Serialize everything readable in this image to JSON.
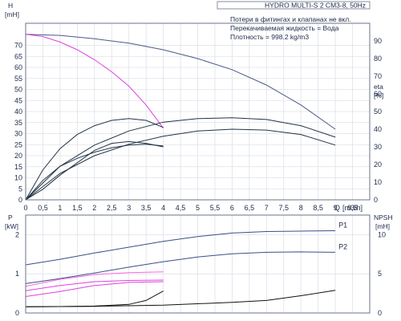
{
  "chart_data": [
    {
      "type": "line",
      "title": "HYDRO MULTI-S 2 CM3-8, 50Hz",
      "info_lines": [
        "Потери в фитингах и клапанах не вкл.",
        "Перекачиваемая жидкость = Вода",
        "Плотность = 998.2 kg/m3"
      ],
      "xlabel": "Q",
      "xunit": "[m3/h]",
      "xlim": [
        0,
        10
      ],
      "xticks": [
        "0",
        "0,5",
        "1",
        "1,5",
        "2",
        "2,5",
        "3",
        "3,5",
        "4",
        "4,5",
        "5",
        "5,5",
        "6",
        "6,5",
        "7",
        "7,5",
        "8",
        "8,5",
        "9",
        "9,5",
        "10"
      ],
      "ylabel_left": "H",
      "yunit_left": "[mH]",
      "ylim_left": [
        0,
        80
      ],
      "yticks_left": [
        "0",
        "5",
        "10",
        "15",
        "20",
        "25",
        "30",
        "35",
        "40",
        "45",
        "50",
        "55",
        "60",
        "65",
        "70"
      ],
      "ylabel_right": "eta",
      "yunit_right": "[%]",
      "ylim_right": [
        0,
        100
      ],
      "yticks_right": [
        "0",
        "10",
        "20",
        "30",
        "40",
        "50",
        "60",
        "70",
        "80",
        "90"
      ],
      "grid": true,
      "series": [
        {
          "axis": "left",
          "color": "#4a5a88",
          "points": [
            [
              0,
              75
            ],
            [
              1,
              74.5
            ],
            [
              2,
              73
            ],
            [
              3,
              71
            ],
            [
              4,
              68
            ],
            [
              5,
              64
            ],
            [
              6,
              59
            ],
            [
              7,
              52
            ],
            [
              8,
              43
            ],
            [
              9,
              32
            ]
          ]
        },
        {
          "axis": "left",
          "color": "#e040e0",
          "points": [
            [
              0,
              75
            ],
            [
              0.5,
              74
            ],
            [
              1,
              71.5
            ],
            [
              1.5,
              68
            ],
            [
              2,
              63.5
            ],
            [
              2.5,
              58
            ],
            [
              3,
              51.5
            ],
            [
              3.5,
              43
            ],
            [
              4,
              32.5
            ]
          ]
        },
        {
          "axis": "right",
          "color": "#223344",
          "points": [
            [
              0,
              0
            ],
            [
              1,
              19
            ],
            [
              2,
              31
            ],
            [
              3,
              39
            ],
            [
              4,
              44
            ],
            [
              5,
              46
            ],
            [
              6,
              46.5
            ],
            [
              7,
              45.5
            ],
            [
              8,
              42
            ],
            [
              9,
              35.5
            ]
          ]
        },
        {
          "axis": "right",
          "color": "#223344",
          "points": [
            [
              0,
              0
            ],
            [
              1,
              15
            ],
            [
              2,
              25
            ],
            [
              3,
              31.5
            ],
            [
              4,
              36
            ],
            [
              5,
              39
            ],
            [
              6,
              40
            ],
            [
              7,
              39.5
            ],
            [
              8,
              37
            ],
            [
              9,
              31
            ]
          ]
        },
        {
          "axis": "right",
          "color": "#223344",
          "points": [
            [
              0,
              0
            ],
            [
              0.5,
              6
            ],
            [
              1,
              14
            ],
            [
              1.5,
              21
            ],
            [
              2,
              28
            ],
            [
              2.5,
              32
            ],
            [
              3,
              33
            ],
            [
              3.5,
              32
            ],
            [
              4,
              30
            ]
          ]
        },
        {
          "axis": "right",
          "color": "#223344",
          "points": [
            [
              0,
              0
            ],
            [
              0.5,
              17
            ],
            [
              1,
              29
            ],
            [
              1.5,
              37
            ],
            [
              2,
              42
            ],
            [
              2.5,
              45
            ],
            [
              3,
              46
            ],
            [
              3.5,
              45
            ],
            [
              4,
              41
            ]
          ]
        },
        {
          "axis": "right",
          "color": "#223344",
          "points": [
            [
              0,
              0
            ],
            [
              0.5,
              11
            ],
            [
              1,
              19
            ],
            [
              1.5,
              23.5
            ],
            [
              2,
              27
            ],
            [
              2.5,
              29.5
            ],
            [
              3,
              31
            ],
            [
              3.5,
              31.5
            ],
            [
              4,
              30.5
            ]
          ]
        }
      ]
    },
    {
      "type": "line",
      "xlim": [
        0,
        10
      ],
      "ylabel_left": "P",
      "yunit_left": "[kW]",
      "ylim_left": [
        0,
        2.5
      ],
      "yticks_left": [
        "0",
        "1",
        "2"
      ],
      "ylabel_right": "NPSH",
      "yunit_right": "[mH]",
      "ylim_right": [
        0,
        12.5
      ],
      "yticks_right": [
        "0",
        "5",
        "10"
      ],
      "grid": true,
      "series": [
        {
          "name": "P1",
          "axis": "left",
          "color": "#3a4f86",
          "points": [
            [
              0,
              1.23
            ],
            [
              1,
              1.37
            ],
            [
              2,
              1.53
            ],
            [
              3,
              1.68
            ],
            [
              4,
              1.83
            ],
            [
              5,
              1.95
            ],
            [
              6,
              2.04
            ],
            [
              7,
              2.08
            ],
            [
              8,
              2.09
            ],
            [
              9,
              2.1
            ]
          ]
        },
        {
          "name": "P2",
          "axis": "left",
          "color": "#3a4f86",
          "points": [
            [
              0,
              0.75
            ],
            [
              1,
              0.88
            ],
            [
              2,
              1.02
            ],
            [
              3,
              1.17
            ],
            [
              4,
              1.31
            ],
            [
              5,
              1.43
            ],
            [
              6,
              1.51
            ],
            [
              7,
              1.55
            ],
            [
              8,
              1.56
            ],
            [
              9,
              1.55
            ]
          ]
        },
        {
          "axis": "left",
          "color": "#e040e0",
          "points": [
            [
              0,
              0.57
            ],
            [
              1,
              0.7
            ],
            [
              2,
              0.8
            ],
            [
              3,
              0.83
            ],
            [
              4,
              0.84
            ]
          ]
        },
        {
          "axis": "left",
          "color": "#e040e0",
          "points": [
            [
              0,
              0.42
            ],
            [
              1,
              0.55
            ],
            [
              2,
              0.7
            ],
            [
              3,
              0.78
            ],
            [
              4,
              0.8
            ]
          ]
        },
        {
          "axis": "left",
          "color": "#ff66e0",
          "points": [
            [
              0,
              0.68
            ],
            [
              1,
              0.86
            ],
            [
              2,
              0.98
            ],
            [
              3,
              1.03
            ],
            [
              4,
              1.05
            ]
          ]
        },
        {
          "axis": "right",
          "color": "#111111",
          "points": [
            [
              0,
              0.8
            ],
            [
              1,
              0.82
            ],
            [
              2,
              0.88
            ],
            [
              3,
              1.1
            ],
            [
              3.5,
              1.6
            ],
            [
              4,
              2.8
            ]
          ]
        },
        {
          "axis": "right",
          "color": "#111111",
          "points": [
            [
              0,
              0.8
            ],
            [
              2,
              0.85
            ],
            [
              4,
              1.0
            ],
            [
              6,
              1.35
            ],
            [
              7,
              1.6
            ],
            [
              8,
              2.2
            ],
            [
              9,
              2.9
            ]
          ]
        }
      ]
    }
  ]
}
